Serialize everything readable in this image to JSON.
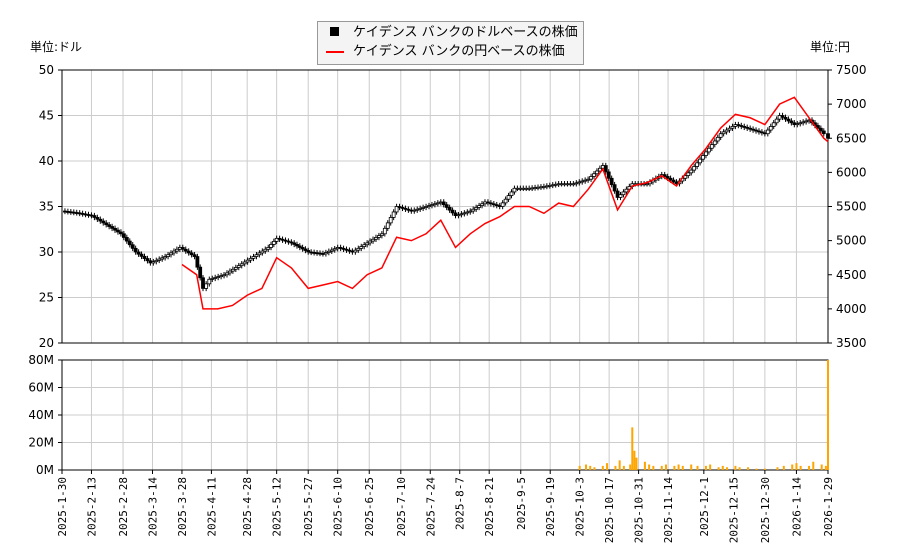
{
  "chart_data": [
    {
      "type": "candlestick-line",
      "left_unit_label": "単位:ドル",
      "right_unit_label": "単位:円",
      "left_ylim": [
        20,
        50
      ],
      "left_ticks": [
        20,
        25,
        30,
        35,
        40,
        45,
        50
      ],
      "right_ylim": [
        3500,
        7500
      ],
      "right_ticks": [
        3500,
        4000,
        4500,
        5000,
        5500,
        6000,
        6500,
        7000,
        7500
      ],
      "grid": true,
      "legend_placement": "top-center",
      "series": [
        {
          "name": "ケイデンス バンクのドルベースの株価",
          "color": "#000000",
          "dates": [
            "2025-01-30",
            "2025-02-06",
            "2025-02-13",
            "2025-02-20",
            "2025-02-27",
            "2025-03-06",
            "2025-03-13",
            "2025-03-20",
            "2025-03-27",
            "2025-04-03",
            "2025-04-07",
            "2025-04-10",
            "2025-04-17",
            "2025-04-24",
            "2025-05-01",
            "2025-05-08",
            "2025-05-12",
            "2025-05-19",
            "2025-05-27",
            "2025-06-03",
            "2025-06-10",
            "2025-06-17",
            "2025-06-24",
            "2025-07-01",
            "2025-07-08",
            "2025-07-15",
            "2025-07-22",
            "2025-07-29",
            "2025-08-05",
            "2025-08-12",
            "2025-08-19",
            "2025-08-26",
            "2025-09-02",
            "2025-09-09",
            "2025-09-16",
            "2025-09-23",
            "2025-09-30",
            "2025-10-07",
            "2025-10-14",
            "2025-10-21",
            "2025-10-28",
            "2025-11-04",
            "2025-11-11",
            "2025-11-18",
            "2025-11-25",
            "2025-12-02",
            "2025-12-09",
            "2025-12-16",
            "2025-12-23",
            "2025-12-30",
            "2026-01-06",
            "2026-01-13",
            "2026-01-20",
            "2026-01-27",
            "2026-01-29"
          ],
          "values": [
            34.5,
            34.3,
            34.0,
            33.0,
            32.0,
            30.0,
            28.8,
            29.5,
            30.5,
            29.5,
            26.0,
            27.0,
            27.5,
            28.5,
            29.5,
            30.5,
            31.5,
            31.0,
            30.0,
            29.8,
            30.5,
            30.0,
            31.0,
            32.0,
            35.0,
            34.5,
            35.0,
            35.5,
            34.0,
            34.5,
            35.5,
            35.0,
            37.0,
            37.0,
            37.2,
            37.5,
            37.5,
            38.0,
            39.5,
            36.0,
            37.5,
            37.5,
            38.5,
            37.5,
            39.0,
            41.0,
            43.0,
            44.0,
            43.5,
            43.0,
            45.0,
            44.0,
            44.5,
            43.0,
            42.5
          ]
        },
        {
          "name": "ケイデンス バンクの円ベースの株価",
          "color": "#ff0000",
          "dates": [
            "2025-03-28",
            "2025-04-04",
            "2025-04-07",
            "2025-04-14",
            "2025-04-21",
            "2025-04-28",
            "2025-05-05",
            "2025-05-12",
            "2025-05-19",
            "2025-05-27",
            "2025-06-03",
            "2025-06-10",
            "2025-06-17",
            "2025-06-24",
            "2025-07-01",
            "2025-07-08",
            "2025-07-15",
            "2025-07-22",
            "2025-07-29",
            "2025-08-05",
            "2025-08-12",
            "2025-08-19",
            "2025-08-26",
            "2025-09-02",
            "2025-09-09",
            "2025-09-16",
            "2025-09-23",
            "2025-09-30",
            "2025-10-07",
            "2025-10-14",
            "2025-10-21",
            "2025-10-28",
            "2025-11-04",
            "2025-11-11",
            "2025-11-18",
            "2025-11-25",
            "2025-12-02",
            "2025-12-09",
            "2025-12-16",
            "2025-12-23",
            "2025-12-30",
            "2026-01-06",
            "2026-01-13",
            "2026-01-20",
            "2026-01-27",
            "2026-01-29"
          ],
          "values": [
            4650,
            4500,
            4000,
            4000,
            4050,
            4200,
            4300,
            4750,
            4600,
            4300,
            4350,
            4400,
            4300,
            4500,
            4600,
            5050,
            5000,
            5100,
            5300,
            4900,
            5100,
            5250,
            5350,
            5500,
            5500,
            5400,
            5550,
            5500,
            5750,
            6050,
            5450,
            5800,
            5850,
            5950,
            5800,
            6100,
            6350,
            6650,
            6850,
            6800,
            6700,
            7000,
            7100,
            6800,
            6500,
            6450
          ]
        }
      ]
    },
    {
      "type": "bar",
      "name": "volume",
      "color": "#ffa500",
      "ylim": [
        0,
        80
      ],
      "ticks_labels": [
        "0M",
        "20M",
        "40M",
        "60M",
        "80M"
      ],
      "ticks": [
        0,
        20,
        40,
        60,
        80
      ],
      "x_tick_labels": [
        "2025-1-30",
        "2025-2-13",
        "2025-2-28",
        "2025-3-14",
        "2025-3-28",
        "2025-4-11",
        "2025-4-28",
        "2025-5-12",
        "2025-5-27",
        "2025-6-10",
        "2025-6-25",
        "2025-7-10",
        "2025-7-24",
        "2025-8-7",
        "2025-8-21",
        "2025-9-5",
        "2025-9-19",
        "2025-10-3",
        "2025-10-17",
        "2025-10-31",
        "2025-11-14",
        "2025-12-1",
        "2025-12-15",
        "2025-12-30",
        "2026-1-14",
        "2026-1-29"
      ],
      "dates": [
        "2025-10-03",
        "2025-10-06",
        "2025-10-08",
        "2025-10-10",
        "2025-10-14",
        "2025-10-16",
        "2025-10-20",
        "2025-10-22",
        "2025-10-24",
        "2025-10-27",
        "2025-10-28",
        "2025-10-29",
        "2025-10-30",
        "2025-11-03",
        "2025-11-05",
        "2025-11-07",
        "2025-11-11",
        "2025-11-13",
        "2025-11-17",
        "2025-11-19",
        "2025-11-21",
        "2025-11-25",
        "2025-11-28",
        "2025-12-02",
        "2025-12-04",
        "2025-12-08",
        "2025-12-10",
        "2025-12-12",
        "2025-12-16",
        "2025-12-18",
        "2025-12-22",
        "2025-12-26",
        "2025-12-30",
        "2026-01-05",
        "2026-01-08",
        "2026-01-12",
        "2026-01-14",
        "2026-01-16",
        "2026-01-20",
        "2026-01-22",
        "2026-01-26",
        "2026-01-28",
        "2026-01-29"
      ],
      "values": [
        3,
        4,
        3,
        2,
        3,
        5,
        3,
        7,
        3,
        4,
        31,
        14,
        9,
        6,
        4,
        3,
        3,
        4,
        3,
        4,
        3,
        4,
        3,
        3,
        4,
        2,
        3,
        2,
        3,
        2,
        2,
        1,
        1,
        2,
        3,
        4,
        5,
        3,
        3,
        6,
        4,
        3,
        80
      ]
    }
  ],
  "legend": {
    "items": [
      "ケイデンス バンクのドルベースの株価",
      "ケイデンス バンクの円ベースの株価"
    ]
  }
}
